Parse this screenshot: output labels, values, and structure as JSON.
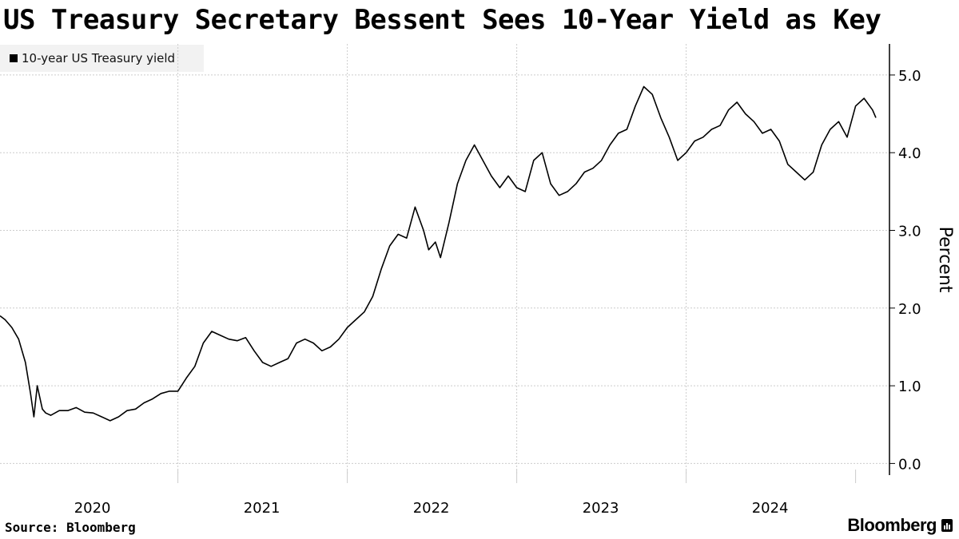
{
  "chart_data": {
    "type": "line",
    "title": "US Treasury Secretary Bessent Sees 10-Year Yield as Key",
    "series": [
      {
        "name": "10-year US Treasury yield",
        "x": [
          2019.95,
          2019.98,
          2020.02,
          2020.06,
          2020.1,
          2020.13,
          2020.15,
          2020.17,
          2020.2,
          2020.22,
          2020.25,
          2020.3,
          2020.35,
          2020.4,
          2020.45,
          2020.5,
          2020.55,
          2020.6,
          2020.65,
          2020.7,
          2020.75,
          2020.8,
          2020.85,
          2020.9,
          2020.95,
          2021.0,
          2021.05,
          2021.1,
          2021.15,
          2021.2,
          2021.25,
          2021.3,
          2021.35,
          2021.4,
          2021.45,
          2021.5,
          2021.55,
          2021.6,
          2021.65,
          2021.7,
          2021.75,
          2021.8,
          2021.85,
          2021.9,
          2021.95,
          2022.0,
          2022.05,
          2022.1,
          2022.15,
          2022.2,
          2022.25,
          2022.3,
          2022.35,
          2022.4,
          2022.45,
          2022.48,
          2022.52,
          2022.55,
          2022.6,
          2022.65,
          2022.7,
          2022.75,
          2022.8,
          2022.85,
          2022.9,
          2022.95,
          2023.0,
          2023.05,
          2023.1,
          2023.15,
          2023.2,
          2023.25,
          2023.3,
          2023.35,
          2023.4,
          2023.45,
          2023.5,
          2023.55,
          2023.6,
          2023.65,
          2023.7,
          2023.75,
          2023.8,
          2023.85,
          2023.9,
          2023.95,
          2024.0,
          2024.05,
          2024.1,
          2024.15,
          2024.2,
          2024.25,
          2024.3,
          2024.35,
          2024.4,
          2024.45,
          2024.5,
          2024.55,
          2024.6,
          2024.65,
          2024.7,
          2024.75,
          2024.8,
          2024.85,
          2024.9,
          2024.95,
          2025.0,
          2025.05,
          2025.1,
          2025.12
        ],
        "y": [
          1.9,
          1.85,
          1.75,
          1.6,
          1.3,
          0.9,
          0.6,
          1.0,
          0.7,
          0.65,
          0.62,
          0.68,
          0.68,
          0.72,
          0.66,
          0.65,
          0.6,
          0.55,
          0.6,
          0.68,
          0.7,
          0.78,
          0.83,
          0.9,
          0.93,
          0.93,
          1.1,
          1.25,
          1.55,
          1.7,
          1.65,
          1.6,
          1.58,
          1.62,
          1.45,
          1.3,
          1.25,
          1.3,
          1.35,
          1.55,
          1.6,
          1.55,
          1.45,
          1.5,
          1.6,
          1.75,
          1.85,
          1.95,
          2.15,
          2.5,
          2.8,
          2.95,
          2.9,
          3.3,
          3.0,
          2.75,
          2.85,
          2.65,
          3.1,
          3.6,
          3.9,
          4.1,
          3.9,
          3.7,
          3.55,
          3.7,
          3.55,
          3.5,
          3.9,
          4.0,
          3.6,
          3.45,
          3.5,
          3.6,
          3.75,
          3.8,
          3.9,
          4.1,
          4.25,
          4.3,
          4.6,
          4.85,
          4.75,
          4.45,
          4.2,
          3.9,
          4.0,
          4.15,
          4.2,
          4.3,
          4.35,
          4.55,
          4.65,
          4.5,
          4.4,
          4.25,
          4.3,
          4.15,
          3.85,
          3.75,
          3.65,
          3.75,
          4.1,
          4.3,
          4.4,
          4.2,
          4.6,
          4.7,
          4.55,
          4.45
        ]
      }
    ],
    "xlabel": "",
    "ylabel": "Percent",
    "x_ticks": [
      "2020",
      "2021",
      "2022",
      "2023",
      "2024"
    ],
    "xlim": [
      2019.95,
      2025.2
    ],
    "ylim": [
      -0.15,
      5.4
    ],
    "y_ticks": [
      "0.0",
      "1.0",
      "2.0",
      "3.0",
      "4.0",
      "5.0"
    ],
    "grid": true,
    "legend": "top-left",
    "line_color": "#000000",
    "grid_color": "#cccccc"
  },
  "source": "Source: Bloomberg",
  "brand": "Bloomberg"
}
